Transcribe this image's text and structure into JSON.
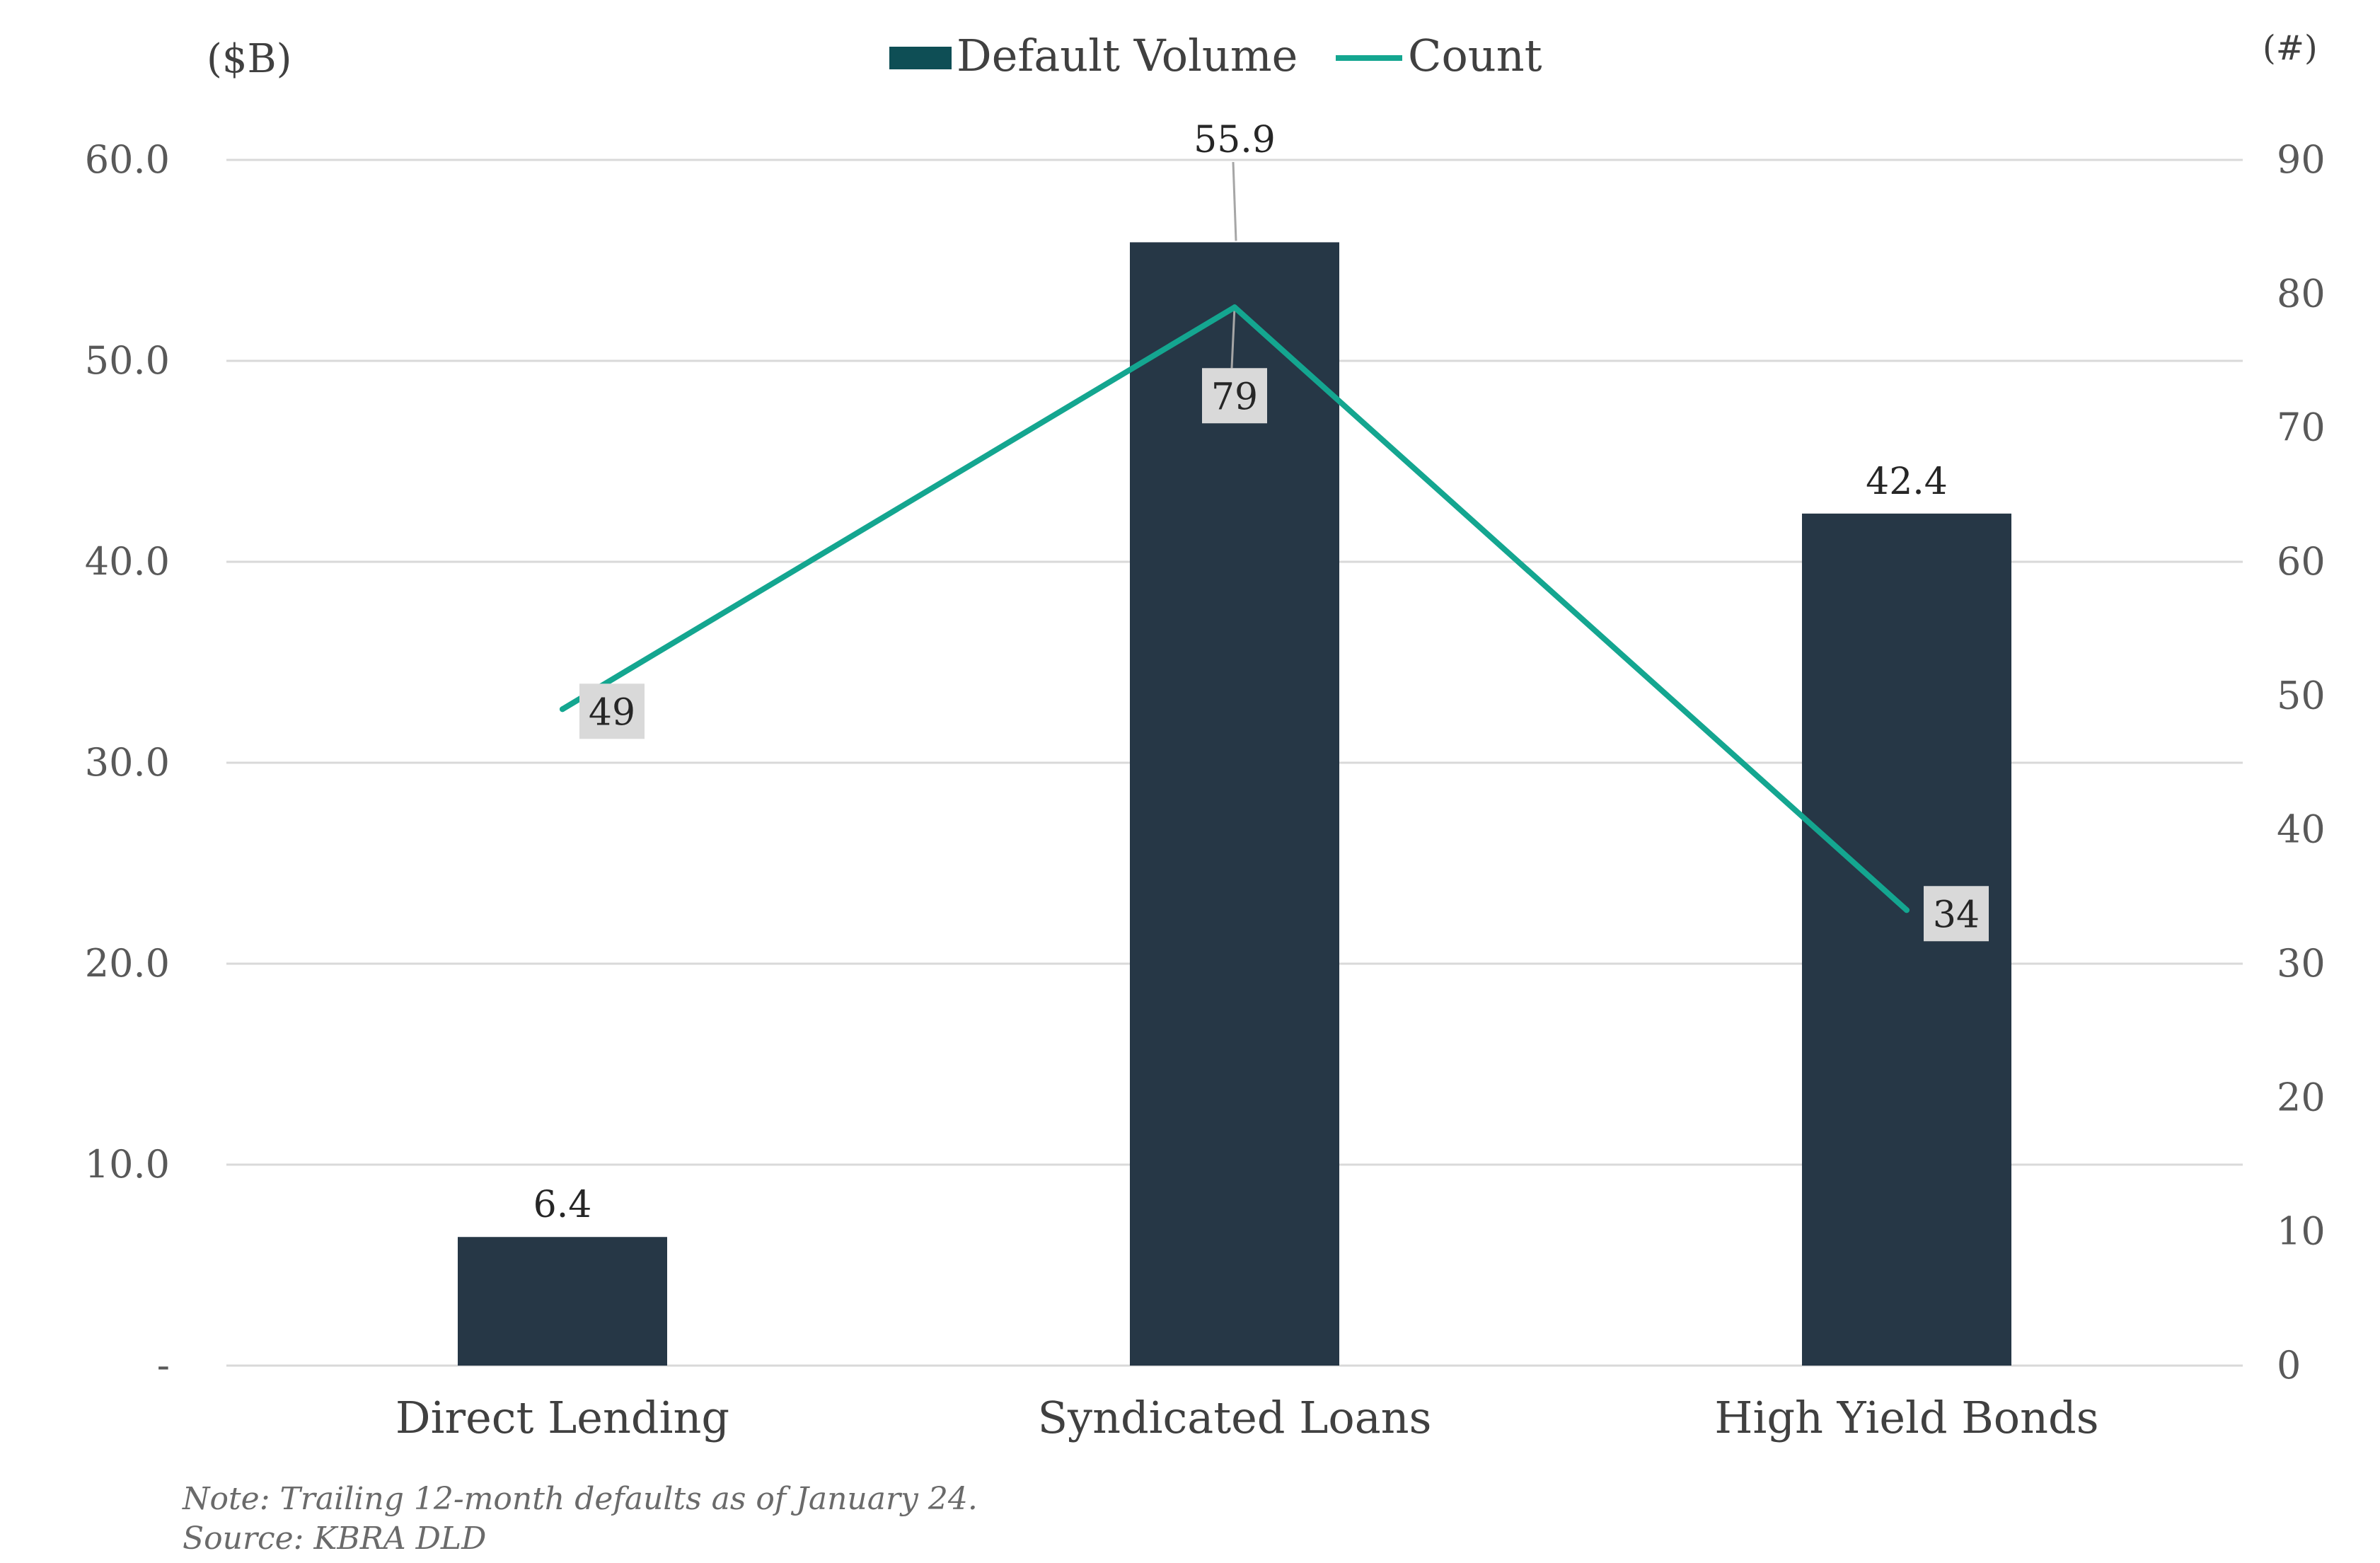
{
  "chart_data": {
    "type": "bar",
    "categories": [
      "Direct Lending",
      "Syndicated Loans",
      "High Yield Bonds"
    ],
    "series": [
      {
        "name": "Default Volume",
        "type": "bar",
        "axis": "left",
        "values": [
          6.4,
          55.9,
          42.4
        ],
        "labels": [
          "6.4",
          "55.9",
          "42.4"
        ],
        "color": "#263746"
      },
      {
        "name": "Count",
        "type": "line",
        "axis": "right",
        "values": [
          49,
          79,
          34
        ],
        "labels": [
          "49",
          "79",
          "34"
        ],
        "color": "#14A690"
      }
    ],
    "legend_swatch_bar_color": "#0E4E55",
    "label_box_color": "#D9D9D9",
    "leader_line_color": "#A6A6A6",
    "grid_color": "#D9D9D9",
    "ylabel_left": "($B)",
    "ylabel_right": "(#)",
    "ylim_left": [
      0,
      60
    ],
    "ylim_right": [
      0,
      90
    ],
    "yticks_left": [
      "-",
      "10.0",
      "20.0",
      "30.0",
      "40.0",
      "50.0",
      "60.0"
    ],
    "yticks_right": [
      "0",
      "10",
      "20",
      "30",
      "40",
      "50",
      "60",
      "70",
      "80",
      "90"
    ],
    "grid": true,
    "legend_position": "top-center"
  },
  "footer": {
    "note": "Note: Trailing 12-month defaults as of January 24.",
    "source": "Source: KBRA DLD"
  }
}
